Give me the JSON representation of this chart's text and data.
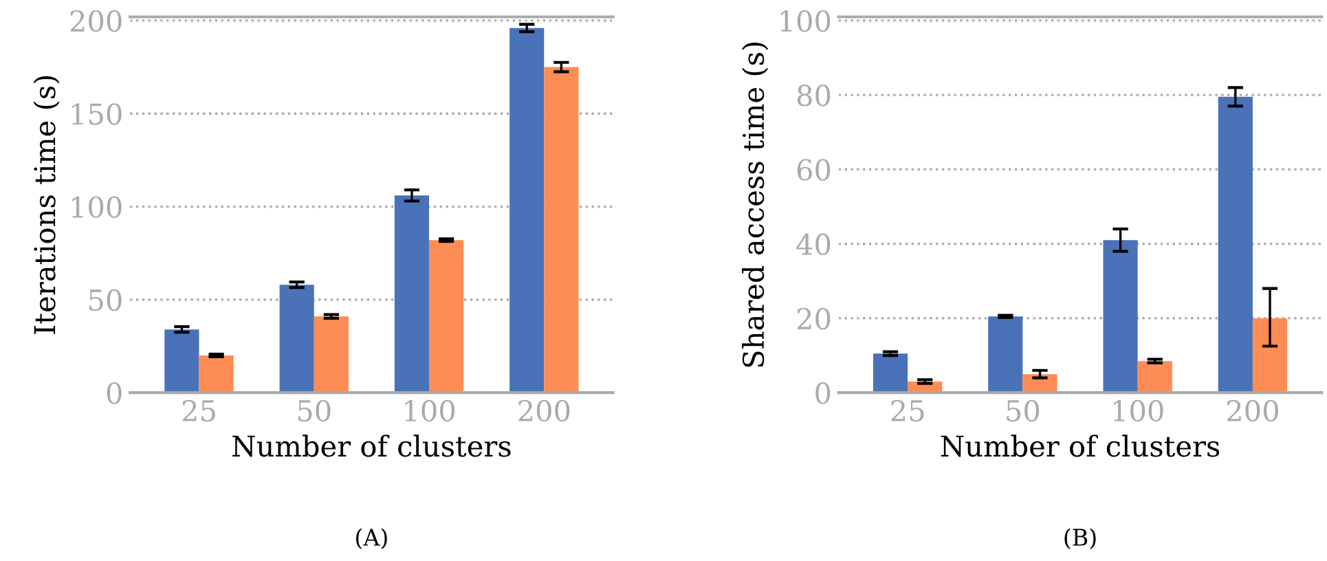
{
  "chart_data": [
    {
      "type": "bar",
      "xlabel": "Number of clusters",
      "ylabel": "Iterations time (s)",
      "categories": [
        "25",
        "50",
        "100",
        "200"
      ],
      "ylim": [
        0,
        202
      ],
      "yticks": [
        0,
        50,
        100,
        150,
        200
      ],
      "grid": "y",
      "annotations": [
        "(A)"
      ],
      "series": [
        {
          "color": "#4a72b8",
          "values": [
            34,
            58,
            106,
            196
          ],
          "errors": [
            1.5,
            1.5,
            3,
            2
          ]
        },
        {
          "color": "#fd8d54",
          "values": [
            20,
            41,
            82,
            175
          ],
          "errors": [
            0.7,
            1,
            0.7,
            2.5
          ]
        }
      ]
    },
    {
      "type": "bar",
      "xlabel": "Number of clusters",
      "ylabel": "Shared access time (s)",
      "categories": [
        "25",
        "50",
        "100",
        "200"
      ],
      "ylim": [
        0,
        101
      ],
      "yticks": [
        0,
        20,
        40,
        60,
        80,
        100
      ],
      "grid": "y",
      "annotations": [
        "(B)"
      ],
      "series": [
        {
          "color": "#4a72b8",
          "values": [
            10.5,
            20.5,
            41,
            79.5
          ],
          "errors": [
            0.5,
            0.3,
            3,
            2.5
          ]
        },
        {
          "color": "#fd8d54",
          "values": [
            3,
            5,
            8.5,
            20
          ],
          "errors": [
            0.5,
            1,
            0.5,
            [
              12.5,
              28
            ]
          ]
        }
      ]
    }
  ]
}
